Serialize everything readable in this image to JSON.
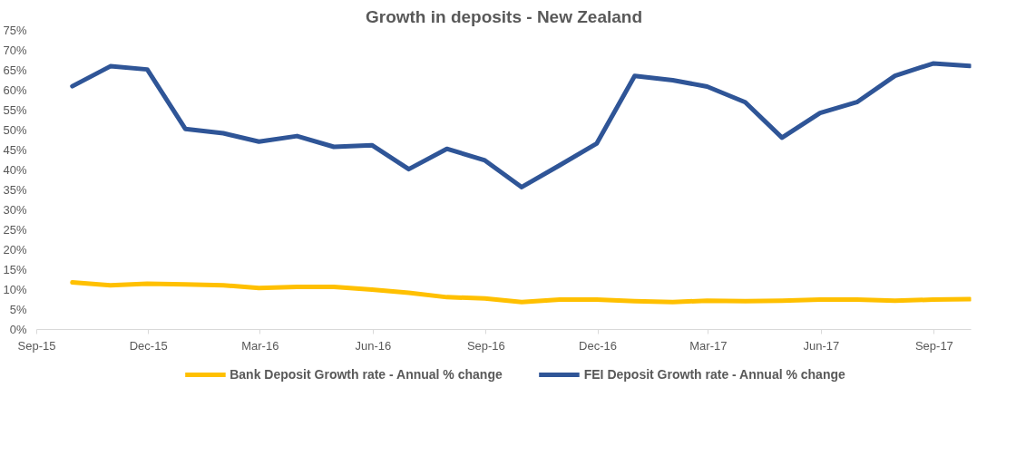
{
  "chart_data": {
    "type": "line",
    "title": "Growth in deposits - New Zealand",
    "x": [
      "2015-09-30",
      "2015-10-31",
      "2015-11-30",
      "2015-12-31",
      "2016-01-31",
      "2016-02-29",
      "2016-03-31",
      "2016-04-30",
      "2016-05-31",
      "2016-06-30",
      "2016-07-31",
      "2016-08-31",
      "2016-09-30",
      "2016-10-31",
      "2016-11-30",
      "2016-12-31",
      "2017-01-31",
      "2017-02-28",
      "2017-03-31",
      "2017-04-30",
      "2017-05-31",
      "2017-06-30",
      "2017-07-31",
      "2017-08-31",
      "2017-09-30"
    ],
    "series": [
      {
        "name": "Bank Deposit Growth rate - Annual % change",
        "color": "#ffc000",
        "values": [
          11.8,
          11.1,
          11.5,
          11.3,
          11.1,
          10.4,
          10.7,
          10.7,
          10.0,
          9.2,
          8.1,
          7.8,
          6.9,
          7.5,
          7.5,
          7.1,
          6.9,
          7.2,
          7.1,
          7.2,
          7.5,
          7.5,
          7.2,
          7.5,
          7.6
        ]
      },
      {
        "name": "FEI Deposit Growth rate - Annual % change",
        "color": "#2f5597",
        "values": [
          61,
          66,
          65.2,
          50.3,
          49.2,
          47.1,
          48.5,
          45.8,
          46.2,
          40.2,
          45.3,
          42.4,
          35.7,
          41.2,
          46.6,
          63.6,
          62.5,
          60.9,
          57.0,
          48.1,
          54.3,
          57.0,
          63.6,
          66.7,
          66.1
        ]
      }
    ],
    "xlim": [
      "2015-09-01",
      "2017-10-01"
    ],
    "xticks": [
      {
        "value": "2015-09-01",
        "label": "Sep-15"
      },
      {
        "value": "2015-12-01",
        "label": "Dec-15"
      },
      {
        "value": "2016-03-01",
        "label": "Mar-16"
      },
      {
        "value": "2016-06-01",
        "label": "Jun-16"
      },
      {
        "value": "2016-09-01",
        "label": "Sep-16"
      },
      {
        "value": "2016-12-01",
        "label": "Dec-16"
      },
      {
        "value": "2017-03-01",
        "label": "Mar-17"
      },
      {
        "value": "2017-06-01",
        "label": "Jun-17"
      },
      {
        "value": "2017-09-01",
        "label": "Sep-17"
      }
    ],
    "ylim": [
      0,
      75
    ],
    "yticks": [
      {
        "value": 0,
        "label": "0%"
      },
      {
        "value": 5,
        "label": "5%"
      },
      {
        "value": 10,
        "label": "10%"
      },
      {
        "value": 15,
        "label": "15%"
      },
      {
        "value": 20,
        "label": "20%"
      },
      {
        "value": 25,
        "label": "25%"
      },
      {
        "value": 30,
        "label": "30%"
      },
      {
        "value": 35,
        "label": "35%"
      },
      {
        "value": 40,
        "label": "40%"
      },
      {
        "value": 45,
        "label": "45%"
      },
      {
        "value": 50,
        "label": "50%"
      },
      {
        "value": 55,
        "label": "55%"
      },
      {
        "value": 60,
        "label": "60%"
      },
      {
        "value": 65,
        "label": "65%"
      },
      {
        "value": 70,
        "label": "70%"
      },
      {
        "value": 75,
        "label": "75%"
      }
    ],
    "grid": false,
    "legend": "bottom",
    "marker": "none",
    "line_style": "solid"
  }
}
